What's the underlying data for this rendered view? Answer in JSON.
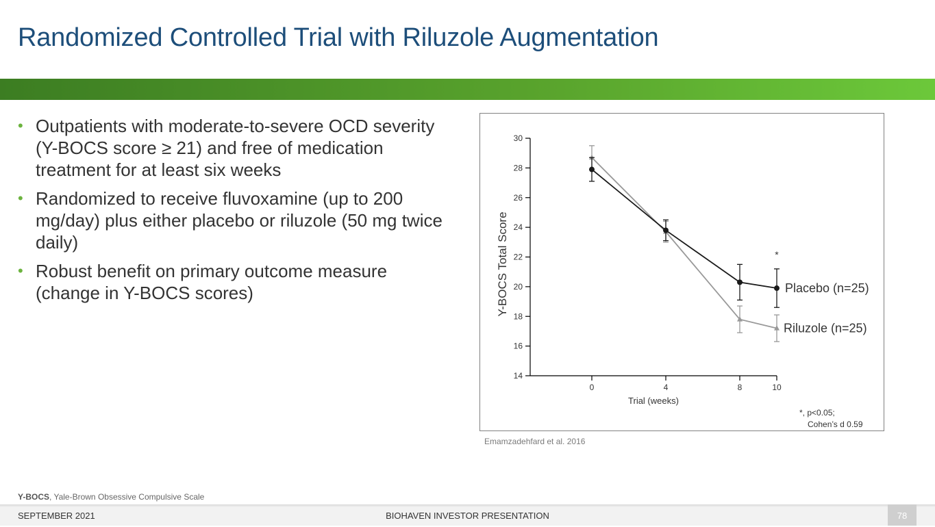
{
  "slide": {
    "title": "Randomized Controlled Trial with Riluzole Augmentation",
    "bullets": [
      "Outpatients with moderate-to-severe OCD severity (Y-BOCS score ≥ 21) and free of medication treatment for at least six weeks",
      "Randomized to receive fluvoxamine (up to 200 mg/day) plus either placebo or riluzole (50 mg twice daily)",
      "Robust benefit on primary outcome measure (change in Y-BOCS scores)"
    ],
    "citation": "Emamzadehfard et al. 2016",
    "footnote_abbr": "Y-BOCS",
    "footnote_text": ", Yale-Brown Obsessive Compulsive Scale",
    "footer_left": "SEPTEMBER 2021",
    "footer_center": "BIOHAVEN INVESTOR PRESENTATION",
    "page_number": "78"
  },
  "colors": {
    "title": "#1d4e7a",
    "bullet": "#6cb33f",
    "placebo": "#1a1a1a",
    "riluzole": "#999999"
  },
  "chart_data": {
    "type": "line",
    "xlabel": "Trial (weeks)",
    "ylabel": "Y-BOCS Total Score",
    "x": [
      0,
      4,
      8,
      10
    ],
    "xticks": [
      "0",
      "4",
      "8",
      "10"
    ],
    "yticks": [
      "14",
      "16",
      "18",
      "20",
      "22",
      "24",
      "26",
      "28",
      "30"
    ],
    "ylim": [
      14,
      30
    ],
    "series": [
      {
        "name": "Placebo (n=25)",
        "values": [
          27.9,
          23.8,
          20.3,
          19.9
        ],
        "error": [
          0.8,
          0.7,
          1.2,
          1.3
        ],
        "marker": "circle"
      },
      {
        "name": "Riluzole (n=25)",
        "values": [
          28.7,
          23.7,
          17.8,
          17.2
        ],
        "error": [
          0.8,
          0.7,
          0.9,
          0.9
        ],
        "marker": "triangle"
      }
    ],
    "significance_marker": "*",
    "significance_at_x": 10,
    "annotation_line1": "*, p<0.05;",
    "annotation_line2": "Cohen’s d 0.59"
  }
}
